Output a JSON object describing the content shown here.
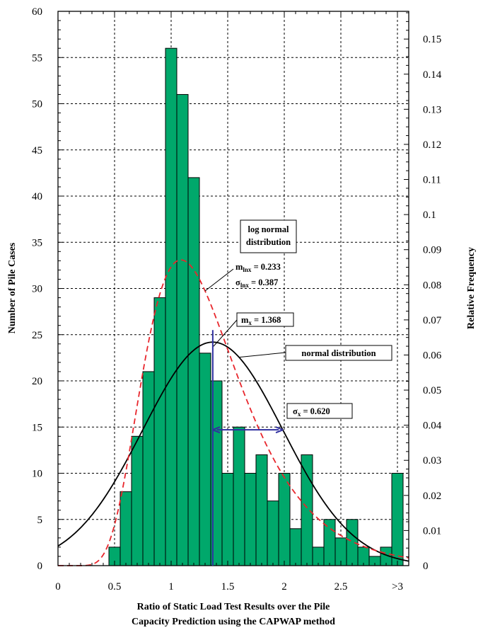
{
  "chart_data": {
    "type": "bar",
    "ylabel_left": "Number of Pile Cases",
    "ylabel_right": "Relative Frequency",
    "xlabel_line1": "Ratio of Static Load Test Results over the Pile",
    "xlabel_line2": "Capacity Prediction using the CAPWAP method",
    "xlim": [
      0,
      3.1
    ],
    "ylim": [
      0,
      60
    ],
    "ylim_right": [
      0,
      0.1579
    ],
    "x_ticks": [
      0,
      0.5,
      1,
      1.5,
      2,
      2.5,
      3
    ],
    "x_tick_labels": [
      "0",
      "0.5",
      "1",
      "1.5",
      "2",
      "2.5",
      ">3"
    ],
    "y_ticks": [
      0,
      5,
      10,
      15,
      20,
      25,
      30,
      35,
      40,
      45,
      50,
      55,
      60
    ],
    "y_tick_labels": [
      "0",
      "5",
      "10",
      "15",
      "20",
      "25",
      "30",
      "35",
      "40",
      "45",
      "50",
      "55",
      "60"
    ],
    "y2_ticks": [
      0,
      0.01,
      0.02,
      0.03,
      0.04,
      0.05,
      0.06,
      0.07,
      0.08,
      0.09,
      0.1,
      0.11,
      0.12,
      0.13,
      0.14,
      0.15
    ],
    "y2_tick_labels": [
      "0",
      "0.01",
      "0.02",
      "0.03",
      "0.04",
      "0.05",
      "0.06",
      "0.07",
      "0.08",
      "0.09",
      "0.1",
      "0.11",
      "0.12",
      "0.13",
      "0.14",
      "0.15"
    ],
    "grid": true,
    "bin_width": 0.1,
    "bins_left_edges": [
      0.45,
      0.55,
      0.65,
      0.75,
      0.85,
      0.95,
      1.05,
      1.15,
      1.25,
      1.35,
      1.45,
      1.55,
      1.65,
      1.75,
      1.85,
      1.95,
      2.05,
      2.15,
      2.25,
      2.35,
      2.45,
      2.55,
      2.65,
      2.75,
      2.85,
      2.95
    ],
    "counts": [
      2,
      8,
      14,
      21,
      29,
      56,
      51,
      42,
      23,
      20,
      10,
      15,
      10,
      12,
      7,
      10,
      4,
      12,
      2,
      5,
      3,
      5,
      2,
      1,
      2,
      10
    ],
    "bar_color": "#00a86b",
    "normal_distribution": {
      "mean": 1.368,
      "std": 0.62,
      "label": "normal distribution",
      "color": "#000000"
    },
    "lognormal_distribution": {
      "mean_ln": 0.233,
      "std_ln": 0.387,
      "color": "#e8262c"
    },
    "annotations": {
      "lognormal_box": {
        "line1": "log normal",
        "line2": "distribution",
        "mean_main": "m",
        "mean_sub": "lnx",
        "mean_val": " = 0.233",
        "sigma_main": "σ",
        "sigma_sub": "lnx",
        "sigma_val": " = 0.387"
      },
      "mean_box": {
        "main": "m",
        "sub": "x",
        "val": " = 1.368"
      },
      "normal_box": {
        "text": "normal distribution"
      },
      "sigma_box": {
        "main": "σ",
        "sub": "x",
        "val": " = 0.620"
      },
      "marker_color": "#3030a0"
    }
  }
}
